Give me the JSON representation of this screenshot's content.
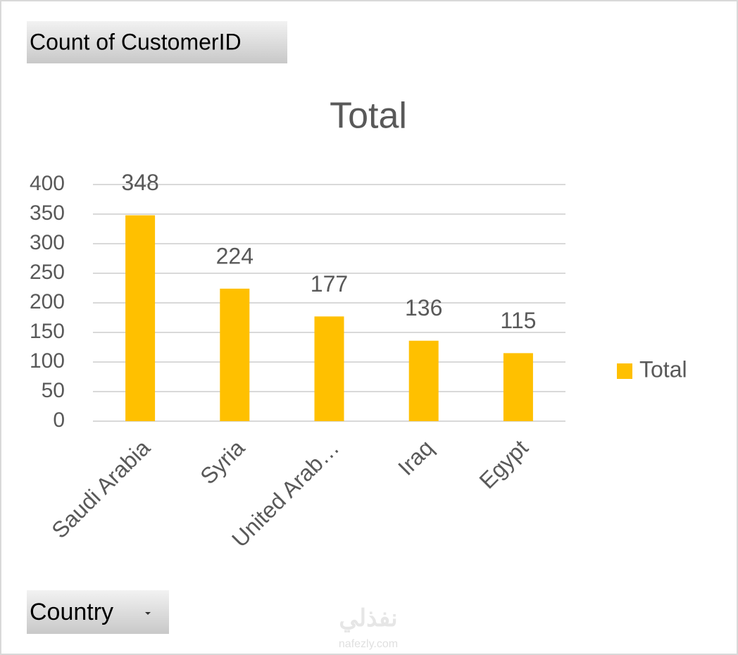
{
  "field_buttons": {
    "values_field": "Count of CustomerID",
    "axis_field": "Country"
  },
  "watermark": {
    "text": "نفذلي",
    "url": "nafezly.com"
  },
  "chart_data": {
    "type": "bar",
    "title": "Total",
    "categories": [
      "Saudi Arabia",
      "Syria",
      "United Arab…",
      "Iraq",
      "Egypt"
    ],
    "series": [
      {
        "name": "Total",
        "color": "#ffc000",
        "values": [
          348,
          224,
          177,
          136,
          115
        ]
      }
    ],
    "ylim": [
      0,
      400
    ],
    "yticks": [
      0,
      50,
      100,
      150,
      200,
      250,
      300,
      350,
      400
    ],
    "grid": true,
    "legend": "right",
    "data_labels": true
  }
}
